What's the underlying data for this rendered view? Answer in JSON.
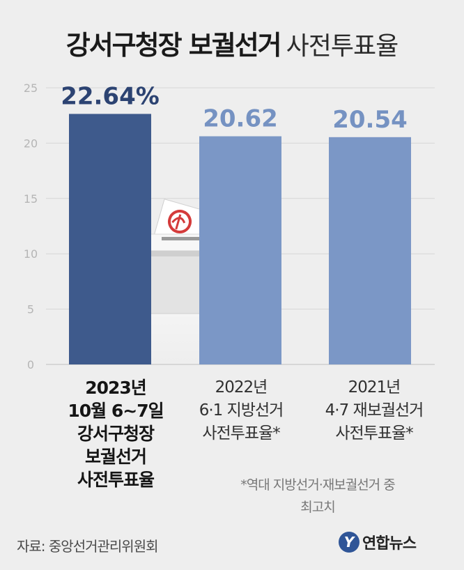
{
  "header": {
    "title_bold": "강서구청장 보궐선거",
    "title_light": "사전투표율"
  },
  "chart_data": {
    "type": "bar",
    "title": "강서구청장 보궐선거 사전투표율",
    "categories": [
      "2023년\n10월 6~7일\n강서구청장\n보궐선거\n사전투표율",
      "2022년\n6·1 지방선거\n사전투표율*",
      "2021년\n4·7 재보궐선거\n사전투표율*"
    ],
    "values": [
      22.64,
      20.62,
      20.54
    ],
    "data_labels": [
      "22.64%",
      "20.62",
      "20.54"
    ],
    "ylim": [
      0,
      25
    ],
    "yticks": [
      0,
      5,
      10,
      15,
      20,
      25
    ],
    "grid": true,
    "colors": [
      "#3e5a8c",
      "#7b97c6",
      "#7b97c6"
    ],
    "label_colors": [
      "#2c4372",
      "#7592c2",
      "#7592c2"
    ]
  },
  "footnote": "*역대 지방선거·재보궐선거 중\n최고치",
  "source": "자료: 중앙선거관리위원회",
  "logo": {
    "mark": "Y",
    "brand": "연합뉴스",
    "color": "#2f5597"
  }
}
